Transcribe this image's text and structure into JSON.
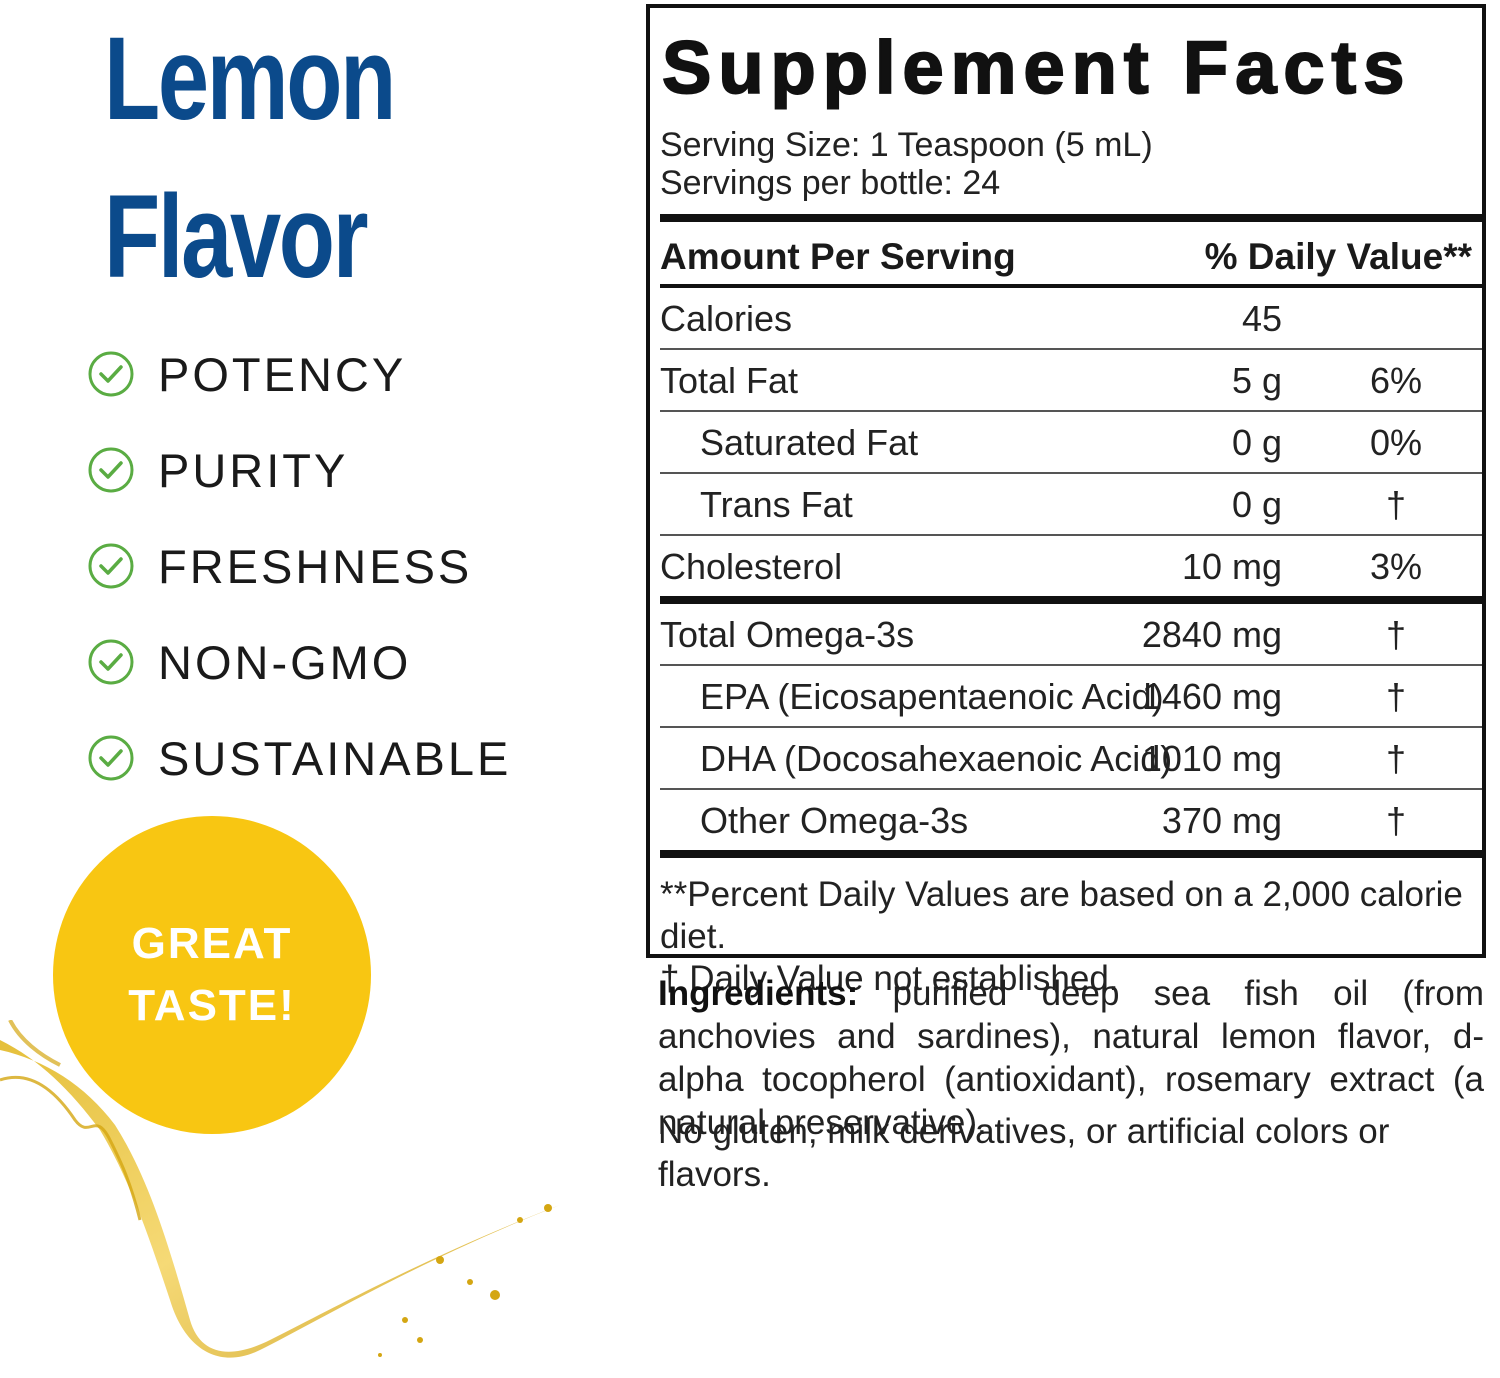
{
  "flavor": {
    "line1": "Lemon",
    "line2": "Flavor",
    "color": "#0b4a8b"
  },
  "benefits": [
    {
      "icon": "check-circle-icon",
      "label": "POTENCY"
    },
    {
      "icon": "check-circle-icon",
      "label": "PURITY"
    },
    {
      "icon": "check-circle-icon",
      "label": "FRESHNESS"
    },
    {
      "icon": "check-circle-icon",
      "label": "NON-GMO"
    },
    {
      "icon": "check-circle-icon",
      "label": "SUSTAINABLE"
    }
  ],
  "check_color": "#5aac43",
  "badge": {
    "line1": "GREAT",
    "line2": "TASTE!",
    "color": "#f8c612"
  },
  "facts": {
    "title": "Supplement Facts",
    "serving_size": "Serving Size: 1 Teaspoon (5 mL)",
    "servings_per": "Servings per bottle: 24",
    "header_left": "Amount Per Serving",
    "header_right": "% Daily Value**",
    "rows": [
      {
        "name": "Calories",
        "amount": "45",
        "dv": ""
      },
      {
        "name": "Total Fat",
        "amount": "5 g",
        "dv": "6%"
      },
      {
        "name": "Saturated Fat",
        "amount": "0 g",
        "dv": "0%"
      },
      {
        "name": "Trans Fat",
        "amount": "0 g",
        "dv": "†"
      },
      {
        "name": "Cholesterol",
        "amount": "10 mg",
        "dv": "3%"
      },
      {
        "name": "Total Omega-3s",
        "amount": "2840 mg",
        "dv": "†"
      },
      {
        "name": "EPA (Eicosapentaenoic Acid)",
        "amount": "1460 mg",
        "dv": "†"
      },
      {
        "name": "DHA (Docosahexaenoic Acid)",
        "amount": "1010 mg",
        "dv": "†"
      },
      {
        "name": "Other Omega-3s",
        "amount": "370 mg",
        "dv": "†"
      }
    ],
    "footnote1": "**Percent Daily Values are based on a 2,000 calorie diet.",
    "footnote2": "† Daily Value not established."
  },
  "ingredients": {
    "label": "Ingredients:",
    "text": " purified deep sea fish oil (from anchovies and sardines), natural lemon flavor, d-alpha tocopherol (antioxidant), rosemary extract (a natural preservative).",
    "free_from": "No gluten, milk derivatives, or artificial colors or flavors."
  }
}
